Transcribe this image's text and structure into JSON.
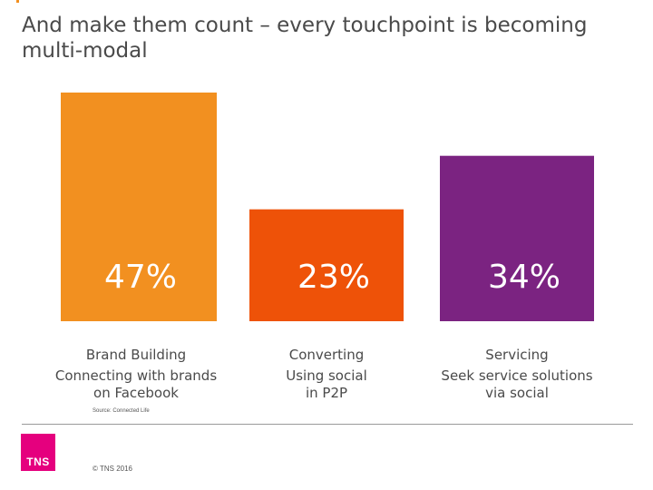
{
  "slide": {
    "title": "And make them count – every touchpoint is becoming multi-modal",
    "source": "Source: Connected Life",
    "copyright": "© TNS 2016",
    "logo_text": "TNS"
  },
  "chart_data": {
    "type": "bar",
    "title": "And make them count – every touchpoint is becoming multi-modal",
    "categories": [
      "Brand Building",
      "Converting",
      "Servicing"
    ],
    "subtitles": [
      [
        "Connecting with brands",
        "on Facebook"
      ],
      [
        "Using social",
        "in P2P"
      ],
      [
        "Seek service solutions",
        "via social"
      ]
    ],
    "values": [
      47,
      23,
      34
    ],
    "labels": [
      "47%",
      "23%",
      "34%"
    ],
    "colors": [
      "#f29020",
      "#ee5208",
      "#7b2381"
    ],
    "unit": "%",
    "ylim": [
      0,
      50
    ],
    "xlabel": "",
    "ylabel": ""
  }
}
